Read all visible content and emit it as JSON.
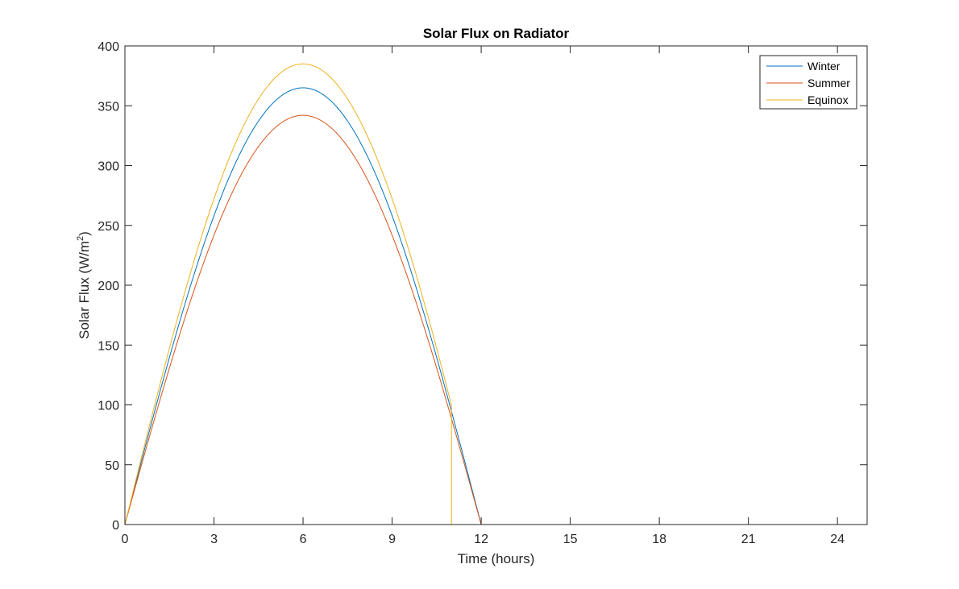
{
  "chart_data": {
    "type": "line",
    "title": "Solar Flux on Radiator",
    "xlabel": "Time (hours)",
    "ylabel": "Solar Flux (W/m",
    "ylabel_sup": "2",
    "ylabel_close": ")",
    "xlim": [
      0,
      25
    ],
    "ylim": [
      0,
      400
    ],
    "xticks": [
      0,
      3,
      6,
      9,
      12,
      15,
      18,
      21,
      24
    ],
    "yticks": [
      0,
      50,
      100,
      150,
      200,
      250,
      300,
      350,
      400
    ],
    "grid": false,
    "legend_position": "top-right",
    "series": [
      {
        "name": "Winter",
        "color": "#0072BD",
        "peak": 365,
        "day_end": 12,
        "drop_at": null,
        "x": [
          0,
          1,
          2,
          3,
          4,
          5,
          6,
          7,
          8,
          9,
          10,
          11,
          12,
          24
        ],
        "y": [
          0,
          94,
          183,
          258,
          316,
          352,
          365,
          352,
          316,
          258,
          183,
          94,
          0,
          0
        ]
      },
      {
        "name": "Summer",
        "color": "#D95319",
        "peak": 342,
        "day_end": 12,
        "drop_at": null,
        "x": [
          0,
          1,
          2,
          3,
          4,
          5,
          6,
          7,
          8,
          9,
          10,
          11,
          12,
          24
        ],
        "y": [
          0,
          88,
          171,
          242,
          296,
          330,
          342,
          330,
          296,
          242,
          171,
          88,
          0,
          0
        ]
      },
      {
        "name": "Equinox",
        "color": "#EDB120",
        "peak": 385,
        "day_end": 12,
        "drop_at": 11,
        "x": [
          0,
          1,
          2,
          3,
          4,
          5,
          6,
          7,
          8,
          9,
          10,
          11,
          11,
          24
        ],
        "y": [
          0,
          100,
          193,
          272,
          333,
          372,
          385,
          372,
          333,
          272,
          193,
          100,
          0,
          0
        ]
      }
    ]
  }
}
